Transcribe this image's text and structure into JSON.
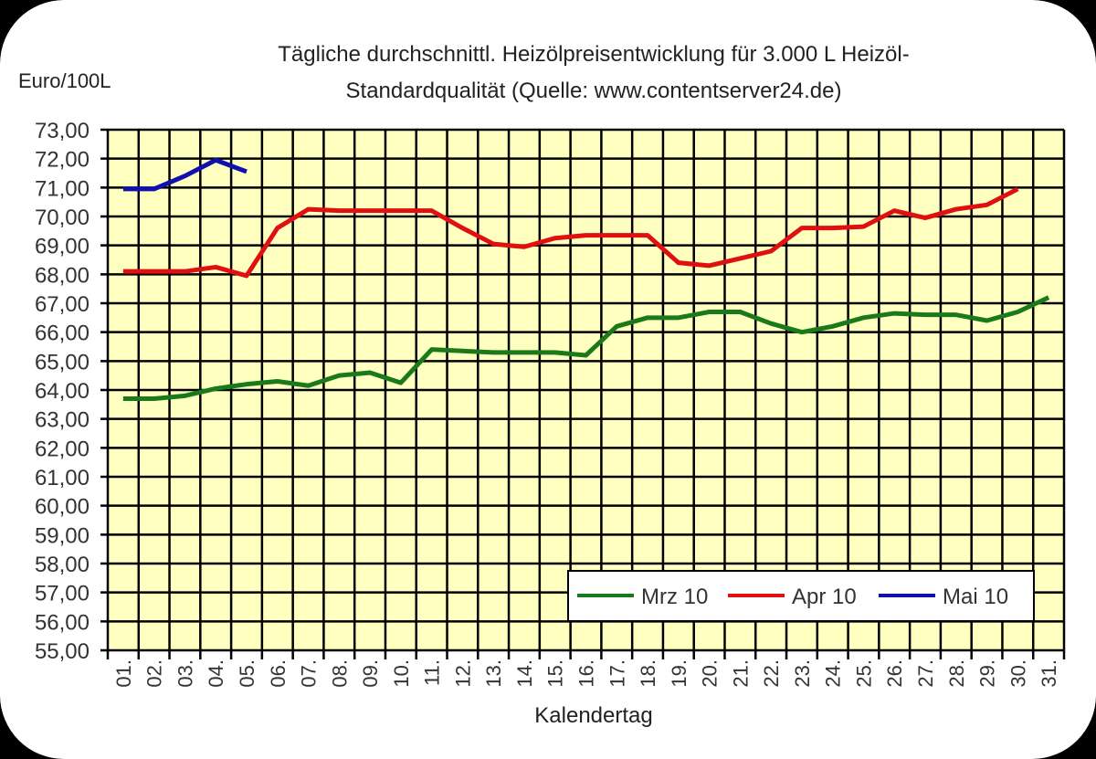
{
  "chart_data": {
    "type": "line",
    "title": "Tägliche durchschnittl. Heizölpreisentwicklung für 3.000 L Heizöl-Standardqualität (Quelle: www.contentserver24.de)",
    "title_lines": [
      "Tägliche durchschnittl. Heizölpreisentwicklung für 3.000 L Heizöl-",
      "Standardqualität (Quelle: www.contentserver24.de)"
    ],
    "xlabel": "Kalendertag",
    "ylabel": "Euro/100L",
    "ylim": [
      55,
      73
    ],
    "ytick_step": 1,
    "ytick_labels": [
      "73,00",
      "72,00",
      "71,00",
      "70,00",
      "69,00",
      "68,00",
      "67,00",
      "66,00",
      "65,00",
      "64,00",
      "63,00",
      "62,00",
      "61,00",
      "60,00",
      "59,00",
      "58,00",
      "57,00",
      "56,00",
      "55,00"
    ],
    "categories": [
      "01.",
      "02.",
      "03.",
      "04.",
      "05.",
      "06.",
      "07.",
      "08.",
      "09.",
      "10.",
      "11.",
      "12.",
      "13.",
      "14.",
      "15.",
      "16.",
      "17.",
      "18.",
      "19.",
      "20.",
      "21.",
      "22.",
      "23.",
      "24.",
      "25.",
      "26.",
      "27.",
      "28.",
      "29.",
      "30.",
      "31."
    ],
    "grid": true,
    "legend_position": "lower right",
    "background": "#ffffc0",
    "series": [
      {
        "name": "Mrz 10",
        "color": "#1a7a1a",
        "values": [
          63.7,
          63.7,
          63.8,
          64.05,
          64.2,
          64.3,
          64.15,
          64.5,
          64.6,
          64.25,
          65.4,
          65.35,
          65.3,
          65.3,
          65.3,
          65.2,
          66.2,
          66.5,
          66.5,
          66.7,
          66.7,
          66.3,
          66.0,
          66.2,
          66.5,
          66.65,
          66.6,
          66.6,
          66.4,
          66.7,
          67.2
        ]
      },
      {
        "name": "Apr 10",
        "color": "#e01010",
        "values": [
          68.1,
          68.1,
          68.1,
          68.25,
          67.95,
          69.6,
          70.25,
          70.2,
          70.2,
          70.2,
          70.2,
          69.6,
          69.05,
          68.95,
          69.25,
          69.35,
          69.35,
          69.35,
          68.4,
          68.3,
          68.55,
          68.8,
          69.6,
          69.6,
          69.65,
          70.2,
          69.95,
          70.25,
          70.4,
          70.95
        ]
      },
      {
        "name": "Mai 10",
        "color": "#1010b0",
        "values": [
          70.95,
          70.95,
          71.4,
          71.95,
          71.55
        ]
      }
    ]
  }
}
